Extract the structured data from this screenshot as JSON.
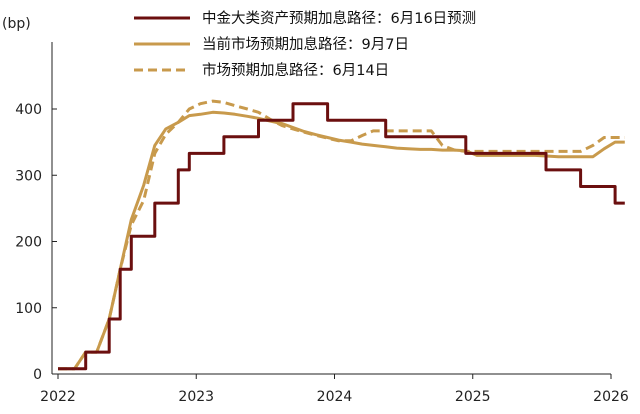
{
  "chart_data": {
    "type": "line",
    "ylabel": "(bp)",
    "xlim": [
      2022.0,
      2026.0
    ],
    "ylim": [
      0,
      400
    ],
    "x_ticks": [
      "2022",
      "2023",
      "2024",
      "2025",
      "2026"
    ],
    "y_ticks": [
      "0",
      "100",
      "200",
      "300",
      "400"
    ],
    "grid": false,
    "legend_position": "top",
    "series": [
      {
        "name": "中金大类资产预期加息路径：6月16日预测",
        "color": "#6b0f0f",
        "dashed": false,
        "shape": "step",
        "x": [
          2022.0,
          2022.12,
          2022.2,
          2022.28,
          2022.37,
          2022.45,
          2022.53,
          2022.62,
          2022.7,
          2022.78,
          2022.87,
          2022.95,
          2023.03,
          2023.12,
          2023.2,
          2023.28,
          2023.37,
          2023.45,
          2023.53,
          2023.62,
          2023.7,
          2023.78,
          2023.87,
          2023.95,
          2024.03,
          2024.12,
          2024.2,
          2024.28,
          2024.37,
          2024.45,
          2024.53,
          2024.62,
          2024.7,
          2024.78,
          2024.87,
          2024.95,
          2025.03,
          2025.12,
          2025.2,
          2025.28,
          2025.37,
          2025.45,
          2025.53,
          2025.62,
          2025.7,
          2025.78,
          2025.87,
          2025.95,
          2026.03,
          2026.1
        ],
        "values": [
          8,
          8,
          33,
          33,
          83,
          158,
          208,
          208,
          258,
          258,
          308,
          333,
          333,
          333,
          358,
          358,
          358,
          383,
          383,
          383,
          408,
          408,
          408,
          383,
          383,
          383,
          383,
          383,
          358,
          358,
          358,
          358,
          358,
          358,
          358,
          333,
          333,
          333,
          333,
          333,
          333,
          333,
          308,
          308,
          308,
          283,
          283,
          283,
          258,
          258
        ]
      },
      {
        "name": "当前市场预期加息路径：9月7日",
        "color": "#c89a4c",
        "dashed": false,
        "shape": "line",
        "x": [
          2022.0,
          2022.12,
          2022.2,
          2022.28,
          2022.37,
          2022.45,
          2022.53,
          2022.62,
          2022.7,
          2022.78,
          2022.87,
          2022.95,
          2023.03,
          2023.12,
          2023.2,
          2023.28,
          2023.37,
          2023.45,
          2023.53,
          2023.62,
          2023.7,
          2023.78,
          2023.87,
          2023.95,
          2024.03,
          2024.12,
          2024.2,
          2024.28,
          2024.37,
          2024.45,
          2024.53,
          2024.62,
          2024.7,
          2024.78,
          2024.87,
          2024.95,
          2025.03,
          2025.12,
          2025.2,
          2025.28,
          2025.37,
          2025.45,
          2025.53,
          2025.62,
          2025.7,
          2025.78,
          2025.87,
          2025.95,
          2026.03,
          2026.1
        ],
        "values": [
          8,
          8,
          33,
          33,
          83,
          158,
          233,
          285,
          345,
          370,
          380,
          390,
          392,
          395,
          394,
          392,
          389,
          386,
          382,
          378,
          372,
          366,
          361,
          357,
          353,
          350,
          347,
          345,
          343,
          341,
          340,
          339,
          339,
          338,
          338,
          337,
          330,
          330,
          330,
          330,
          330,
          330,
          329,
          328,
          328,
          328,
          328,
          340,
          350,
          350
        ]
      },
      {
        "name": "市场预期加息路径：6月14日",
        "color": "#c89a4c",
        "dashed": true,
        "shape": "line",
        "x": [
          2022.0,
          2022.12,
          2022.2,
          2022.28,
          2022.37,
          2022.45,
          2022.53,
          2022.62,
          2022.7,
          2022.78,
          2022.87,
          2022.95,
          2023.03,
          2023.12,
          2023.2,
          2023.28,
          2023.37,
          2023.45,
          2023.53,
          2023.62,
          2023.7,
          2023.78,
          2023.87,
          2023.95,
          2024.03,
          2024.12,
          2024.2,
          2024.28,
          2024.37,
          2024.45,
          2024.53,
          2024.62,
          2024.7,
          2024.78,
          2024.87,
          2024.95,
          2025.03,
          2025.12,
          2025.2,
          2025.28,
          2025.37,
          2025.45,
          2025.53,
          2025.62,
          2025.7,
          2025.78,
          2025.87,
          2025.95,
          2026.03,
          2026.1
        ],
        "values": [
          8,
          8,
          33,
          33,
          83,
          158,
          225,
          262,
          333,
          362,
          380,
          400,
          408,
          412,
          410,
          405,
          400,
          395,
          385,
          375,
          370,
          365,
          360,
          356,
          352,
          352,
          360,
          367,
          367,
          367,
          367,
          367,
          367,
          345,
          338,
          336,
          336,
          336,
          336,
          336,
          336,
          336,
          336,
          336,
          336,
          336,
          345,
          357,
          357,
          357
        ]
      }
    ]
  }
}
